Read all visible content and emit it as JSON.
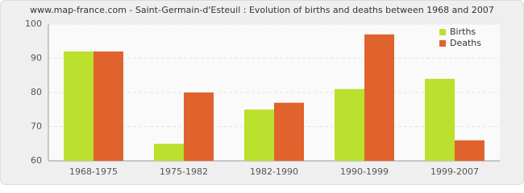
{
  "chart_data": {
    "type": "bar",
    "title": "www.map-france.com - Saint-Germain-d'Esteuil : Evolution of births and deaths between 1968 and 2007",
    "categories": [
      "1968-1975",
      "1975-1982",
      "1982-1990",
      "1990-1999",
      "1999-2007"
    ],
    "series": [
      {
        "name": "Births",
        "color": "#bbe02e",
        "values": [
          92,
          65,
          75,
          81,
          84
        ]
      },
      {
        "name": "Deaths",
        "color": "#e0632d",
        "values": [
          92,
          80,
          77,
          97,
          66
        ]
      }
    ],
    "ylim": [
      60,
      100
    ],
    "yticks": [
      60,
      70,
      80,
      90,
      100
    ],
    "grid": true,
    "legend": "top-right"
  }
}
